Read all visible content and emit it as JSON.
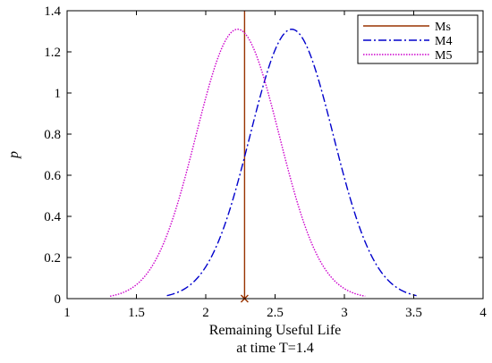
{
  "chart_data": {
    "type": "line",
    "title": "",
    "xlabel": "Remaining Useful Life",
    "xlabel_line2": "at time T=1.4",
    "ylabel": "p",
    "xlim": [
      1,
      4
    ],
    "ylim": [
      0,
      1.4
    ],
    "xticks": [
      1,
      1.5,
      2,
      2.5,
      3,
      3.5,
      4
    ],
    "yticks": [
      0,
      0.2,
      0.4,
      0.6,
      0.8,
      1,
      1.2,
      1.4
    ],
    "xtick_labels": [
      "1",
      "1.5",
      "2",
      "2.5",
      "3",
      "3.5",
      "4"
    ],
    "ytick_labels": [
      "0",
      "0.2",
      "0.4",
      "0.6",
      "0.8",
      "1",
      "1.2",
      "1.4"
    ],
    "grid": false,
    "legend_position": "top-right",
    "series": [
      {
        "name": "Ms",
        "kind": "vertical-line",
        "x": 2.28,
        "color": "#993300",
        "dash": "solid",
        "marker_at_zero": true
      },
      {
        "name": "M4",
        "kind": "gaussian",
        "mean": 2.62,
        "sd": 0.3,
        "peak": 1.31,
        "x_range": [
          1.72,
          3.52
        ],
        "color": "#0000cc",
        "dash": "dash-dot"
      },
      {
        "name": "M5",
        "kind": "gaussian",
        "mean": 2.23,
        "sd": 0.3,
        "peak": 1.31,
        "x_range": [
          1.31,
          3.15
        ],
        "color": "#cc00cc",
        "dash": "dotted"
      }
    ]
  }
}
